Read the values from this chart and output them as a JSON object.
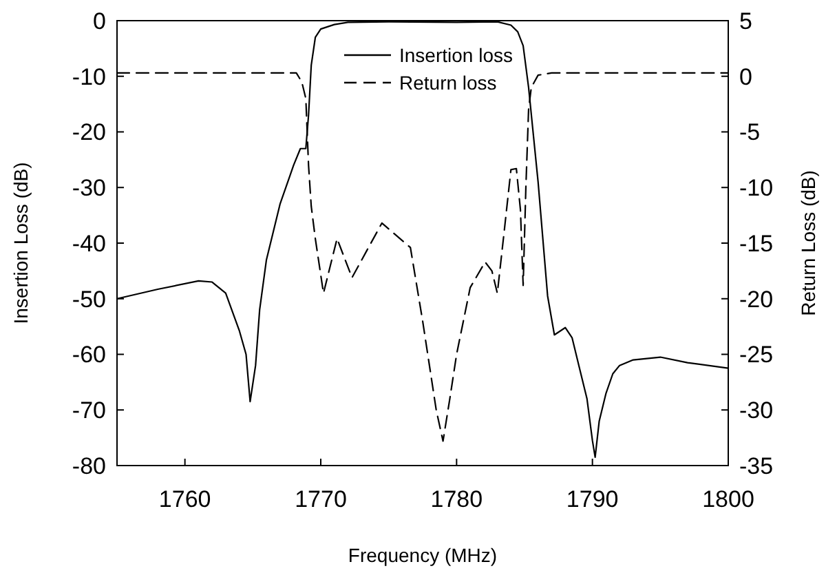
{
  "chart_data": {
    "type": "line",
    "xlabel": "Frequency (MHz)",
    "ylabel": "Insertion Loss (dB)",
    "y2label": "Return Loss (dB)",
    "xlim": [
      1755,
      1800
    ],
    "xticks": [
      1760,
      1770,
      1780,
      1790,
      1800
    ],
    "ylim": [
      -80,
      0
    ],
    "yticks": [
      -80,
      -70,
      -60,
      -50,
      -40,
      -30,
      -20,
      -10,
      0
    ],
    "y2lim": [
      -35,
      5
    ],
    "y2ticks": [
      -35,
      -30,
      -25,
      -20,
      -15,
      -10,
      -5,
      0,
      5
    ],
    "grid": false,
    "legend": "top",
    "marker": "none",
    "series": [
      {
        "name": "Insertion loss",
        "color": "#000000",
        "line_style": "solid",
        "x": [
          1755,
          1758,
          1761,
          1762,
          1763,
          1764,
          1764.5,
          1764.8,
          1765.2,
          1765.5,
          1766,
          1767,
          1768,
          1768.5,
          1768.9,
          1769.1,
          1769.3,
          1769.6,
          1770,
          1771,
          1772,
          1775,
          1780,
          1783,
          1784,
          1784.5,
          1784.9,
          1785.3,
          1786,
          1786.7,
          1787.2,
          1788,
          1788.5,
          1789,
          1789.6,
          1790,
          1790.2,
          1790.5,
          1791,
          1791.5,
          1792,
          1793,
          1795,
          1797,
          1800
        ],
        "values": [
          -50,
          -48.3,
          -46.8,
          -47,
          -49,
          -55.7,
          -60,
          -68.5,
          -62,
          -52,
          -43,
          -33,
          -26,
          -23,
          -23,
          -17,
          -8,
          -3,
          -1.5,
          -0.7,
          -0.3,
          -0.2,
          -0.3,
          -0.2,
          -0.8,
          -2,
          -4.5,
          -12,
          -29,
          -49.5,
          -56.5,
          -55.2,
          -57,
          -62,
          -68,
          -75.5,
          -78.5,
          -72,
          -67,
          -63.5,
          -62,
          -61,
          -60.5,
          -61.5,
          -62.5
        ]
      },
      {
        "name": "Return loss",
        "color": "#000000",
        "line_style": "dashed",
        "axis": "y2",
        "x": [
          1755,
          1768.2,
          1768.6,
          1768.9,
          1769.1,
          1769.3,
          1769.6,
          1770.2,
          1771.2,
          1772.3,
          1774.5,
          1776.6,
          1777.5,
          1778.5,
          1779,
          1779.5,
          1780,
          1781,
          1782.1,
          1782.6,
          1783,
          1783.5,
          1784,
          1784.4,
          1784.7,
          1784.9,
          1785.1,
          1785.3,
          1785.5,
          1786,
          1787,
          1800
        ],
        "values": [
          0.3,
          0.3,
          -0.5,
          -2,
          -8,
          -11.7,
          -14.6,
          -19.5,
          -14.6,
          -18.1,
          -13.2,
          -15.4,
          -22,
          -30,
          -32.8,
          -29,
          -25,
          -19,
          -16.7,
          -17.5,
          -19.5,
          -14,
          -8.4,
          -8.3,
          -12,
          -18.8,
          -10,
          -3,
          -1,
          0.1,
          0.3,
          0.3
        ]
      }
    ]
  }
}
